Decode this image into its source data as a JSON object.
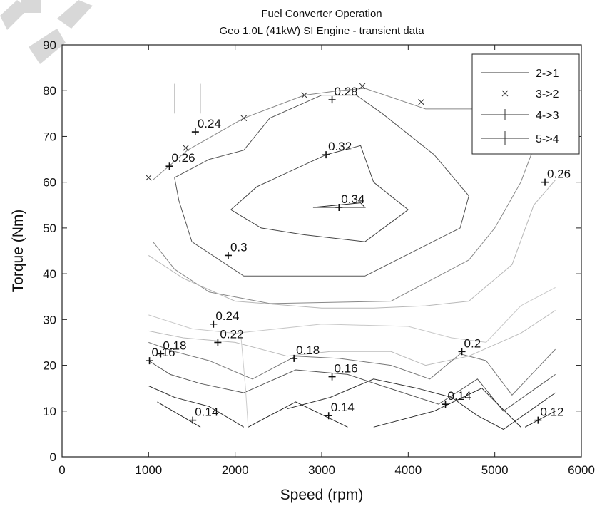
{
  "chart_data": {
    "type": "line",
    "title": "Fuel Converter Operation",
    "subtitle": "Geo 1.0L (41kW) SI Engine - transient data",
    "xlabel": "Speed (rpm)",
    "ylabel": "Torque (Nm)",
    "xlim": [
      0,
      6000
    ],
    "ylim": [
      0,
      90
    ],
    "xticks": [
      0,
      1000,
      2000,
      3000,
      4000,
      5000,
      6000
    ],
    "yticks": [
      0,
      10,
      20,
      30,
      40,
      50,
      60,
      70,
      80,
      90
    ],
    "grid": false,
    "legend": {
      "position": "top-right",
      "entries": [
        {
          "label": "2->1",
          "marker": "none"
        },
        {
          "label": "3->2",
          "marker": "x"
        },
        {
          "label": "4->3",
          "marker": "|"
        },
        {
          "label": "5->4",
          "marker": "+"
        }
      ]
    },
    "contours": [
      {
        "level": 0.34,
        "color": "#222222",
        "points": [
          [
            2900,
            54.5
          ],
          [
            3450,
            55.5
          ],
          [
            3500,
            54.5
          ],
          [
            2900,
            54.5
          ]
        ]
      },
      {
        "level": 0.32,
        "color": "#444444",
        "points": [
          [
            1950,
            54
          ],
          [
            2250,
            59
          ],
          [
            3050,
            66
          ],
          [
            3450,
            68
          ],
          [
            3600,
            60
          ],
          [
            4000,
            54
          ],
          [
            3500,
            47
          ],
          [
            2800,
            48.5
          ],
          [
            2300,
            50
          ],
          [
            1950,
            54
          ]
        ]
      },
      {
        "level": 0.3,
        "color": "#555555",
        "points": [
          [
            1300,
            61
          ],
          [
            1700,
            65
          ],
          [
            2100,
            67
          ],
          [
            2400,
            74
          ],
          [
            3000,
            79
          ],
          [
            3400,
            79
          ],
          [
            3700,
            75
          ],
          [
            4300,
            66
          ],
          [
            4700,
            57
          ],
          [
            4600,
            50
          ],
          [
            3500,
            39.5
          ],
          [
            2100,
            39.5
          ],
          [
            1500,
            47
          ],
          [
            1350,
            56
          ],
          [
            1300,
            61
          ]
        ]
      },
      {
        "level": 0.28,
        "color": "#888888",
        "points": [
          [
            1050,
            60.5
          ],
          [
            1450,
            67
          ],
          [
            2100,
            74
          ],
          [
            2800,
            79
          ],
          [
            3200,
            80
          ],
          [
            3500,
            80.5
          ],
          [
            4200,
            76
          ],
          [
            5000,
            76
          ],
          [
            5500,
            70
          ],
          [
            5300,
            60
          ],
          [
            5000,
            50
          ],
          [
            4700,
            43
          ],
          [
            3800,
            34
          ],
          [
            2400,
            33.5
          ],
          [
            1700,
            36
          ],
          [
            1300,
            41
          ],
          [
            1050,
            47
          ]
        ]
      },
      {
        "level": 0.26,
        "color": "#b8b8b8",
        "points": [
          [
            1000,
            44
          ],
          [
            1400,
            39
          ],
          [
            2000,
            34
          ],
          [
            3000,
            32.5
          ],
          [
            3600,
            32.5
          ],
          [
            4200,
            33
          ],
          [
            4700,
            34
          ],
          [
            5200,
            42
          ],
          [
            5450,
            55
          ],
          [
            5700,
            60.5
          ]
        ]
      },
      {
        "level": 0.24,
        "color": "#c8c8c8",
        "points": [
          [
            1000,
            31
          ],
          [
            1500,
            28
          ],
          [
            2000,
            27
          ],
          [
            3000,
            29
          ],
          [
            4000,
            28.5
          ],
          [
            4500,
            26
          ],
          [
            4900,
            25
          ],
          [
            5300,
            33
          ],
          [
            5700,
            37
          ]
        ]
      },
      {
        "level": 0.22,
        "color": "#bbbbbb",
        "points": [
          [
            1000,
            27.5
          ],
          [
            1400,
            26
          ],
          [
            2000,
            25
          ],
          [
            2600,
            22
          ],
          [
            3100,
            23
          ],
          [
            3800,
            23
          ],
          [
            4200,
            20
          ],
          [
            4700,
            22
          ],
          [
            5300,
            27
          ],
          [
            5700,
            32
          ]
        ]
      },
      {
        "level": 0.2,
        "color": "#777777",
        "points": [
          [
            1000,
            25
          ],
          [
            1300,
            23
          ],
          [
            1700,
            21
          ],
          [
            2200,
            17
          ],
          [
            2700,
            22
          ],
          [
            3200,
            21.5
          ],
          [
            3800,
            20
          ],
          [
            4250,
            17
          ],
          [
            4600,
            22.5
          ],
          [
            4900,
            21
          ],
          [
            5200,
            13.5
          ],
          [
            5700,
            23.5
          ]
        ]
      },
      {
        "level": 0.18,
        "color": "#555555",
        "points": [
          [
            1000,
            21
          ],
          [
            1250,
            18
          ],
          [
            1600,
            16
          ],
          [
            2100,
            14
          ],
          [
            2700,
            19
          ],
          [
            3300,
            18
          ],
          [
            3700,
            15.5
          ],
          [
            4350,
            11.5
          ],
          [
            4800,
            17
          ],
          [
            5100,
            10
          ],
          [
            5700,
            18
          ]
        ]
      },
      {
        "level": 0.16,
        "color": "#333333",
        "points": [
          [
            1000,
            15.5
          ],
          [
            1300,
            13
          ],
          [
            1700,
            11
          ],
          [
            2100,
            6.5
          ]
        ]
      },
      {
        "level": 0.16,
        "color": "#333333",
        "points": [
          [
            2600,
            10.5
          ],
          [
            3100,
            13
          ],
          [
            3600,
            17
          ],
          [
            4100,
            15
          ],
          [
            4500,
            13
          ],
          [
            4800,
            9
          ],
          [
            5100,
            6
          ],
          [
            5700,
            14
          ]
        ]
      },
      {
        "level": 0.14,
        "color": "#222222",
        "points": [
          [
            1100,
            12
          ],
          [
            1600,
            6.5
          ]
        ]
      },
      {
        "level": 0.14,
        "color": "#222222",
        "points": [
          [
            2150,
            6.5
          ],
          [
            2700,
            12
          ],
          [
            3300,
            6.5
          ]
        ]
      },
      {
        "level": 0.14,
        "color": "#222222",
        "points": [
          [
            3600,
            6.5
          ],
          [
            4300,
            10
          ],
          [
            4850,
            15
          ],
          [
            5300,
            6.5
          ]
        ]
      },
      {
        "level": 0.12,
        "color": "#222222",
        "points": [
          [
            5350,
            6.5
          ],
          [
            5700,
            10
          ]
        ]
      },
      {
        "level": 0.22,
        "color": "#cccccc",
        "points": [
          [
            2150,
            6.5
          ],
          [
            2120,
            15
          ],
          [
            2060,
            28
          ]
        ]
      },
      {
        "level": 0.32,
        "color": "#bbbbbb",
        "points": [
          [
            1300,
            75
          ],
          [
            1300,
            81.5
          ]
        ]
      },
      {
        "level": 0.32,
        "color": "#bbbbbb",
        "points": [
          [
            1600,
            75
          ],
          [
            1600,
            81.5
          ]
        ]
      }
    ],
    "contour_labels": [
      {
        "text": "0.34",
        "x": 3200,
        "y": 54.5
      },
      {
        "text": "0.32",
        "x": 3050,
        "y": 66
      },
      {
        "text": "0.3",
        "x": 1920,
        "y": 44
      },
      {
        "text": "0.28",
        "x": 3120,
        "y": 78
      },
      {
        "text": "0.26",
        "x": 1240,
        "y": 63.5
      },
      {
        "text": "0.24",
        "x": 1540,
        "y": 71
      },
      {
        "text": "0.26",
        "x": 5580,
        "y": 60
      },
      {
        "text": "0.24",
        "x": 1750,
        "y": 29
      },
      {
        "text": "0.22",
        "x": 1800,
        "y": 25
      },
      {
        "text": "0.18",
        "x": 1140,
        "y": 22.5
      },
      {
        "text": "0.16",
        "x": 1010,
        "y": 21
      },
      {
        "text": "0.18",
        "x": 2680,
        "y": 21.5
      },
      {
        "text": "0.16",
        "x": 3120,
        "y": 17.5
      },
      {
        "text": "0.2",
        "x": 4620,
        "y": 23
      },
      {
        "text": "0.14",
        "x": 1510,
        "y": 8
      },
      {
        "text": "0.14",
        "x": 3080,
        "y": 9
      },
      {
        "text": "0.14",
        "x": 4430,
        "y": 11.5
      },
      {
        "text": "0.12",
        "x": 5500,
        "y": 8
      }
    ],
    "markers_x": [
      [
        1000,
        61
      ],
      [
        1430,
        67.5
      ],
      [
        2100,
        74
      ],
      [
        2800,
        79
      ],
      [
        3470,
        81
      ],
      [
        4150,
        77.5
      ],
      [
        4850,
        76
      ]
    ]
  }
}
